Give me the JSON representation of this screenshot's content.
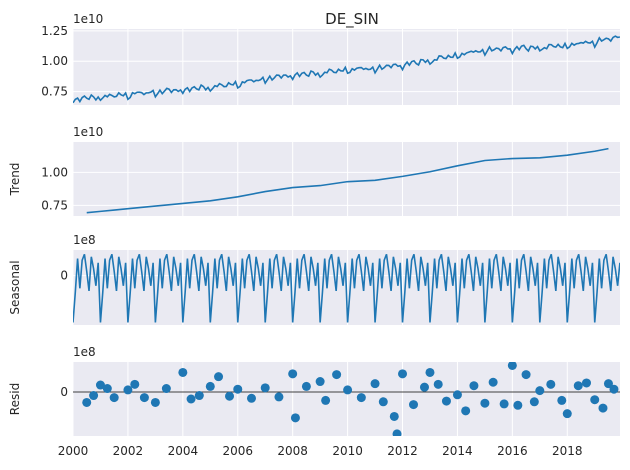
{
  "figure": {
    "title": "DE_SIN"
  },
  "colors": {
    "line": "#1f77b4",
    "panel_bg": "#eaeaf2",
    "grid": "#ffffff",
    "text": "#262626",
    "zero_line": "#000000"
  },
  "chart_data": [
    {
      "type": "line",
      "panel": "observed",
      "title": "DE_SIN",
      "ylabel": "",
      "offset_text": "1e10",
      "x_range": [
        2000.0,
        2019.92
      ],
      "ylim": [
        6.4,
        12.65
      ],
      "ytick_values": [
        7.5,
        10.0,
        12.5
      ],
      "ytick_labels": [
        "0.75",
        "1.00",
        "1.25"
      ],
      "grid": true,
      "series": [
        {
          "values": []
        }
      ]
    },
    {
      "type": "line",
      "panel": "trend",
      "title": "",
      "ylabel": "Trend",
      "offset_text": "1e10",
      "x_range": [
        2000.0,
        2019.92
      ],
      "ylim": [
        6.7,
        12.3
      ],
      "ytick_values": [
        7.5,
        10.0
      ],
      "ytick_labels": [
        "0.75",
        "1.00"
      ],
      "grid": true,
      "points": [
        [
          2000.5,
          6.95
        ],
        [
          2001,
          7.05
        ],
        [
          2001.5,
          7.15
        ],
        [
          2002,
          7.25
        ],
        [
          2003,
          7.45
        ],
        [
          2004,
          7.65
        ],
        [
          2005,
          7.85
        ],
        [
          2006,
          8.15
        ],
        [
          2007,
          8.55
        ],
        [
          2008,
          8.85
        ],
        [
          2009,
          9.0
        ],
        [
          2010,
          9.3
        ],
        [
          2011,
          9.4
        ],
        [
          2012,
          9.7
        ],
        [
          2013,
          10.05
        ],
        [
          2014,
          10.5
        ],
        [
          2015,
          10.9
        ],
        [
          2016,
          11.05
        ],
        [
          2017,
          11.1
        ],
        [
          2018,
          11.3
        ],
        [
          2019,
          11.6
        ],
        [
          2019.5,
          11.8
        ]
      ]
    },
    {
      "type": "line",
      "panel": "seasonal",
      "title": "",
      "ylabel": "Seasonal",
      "offset_text": "1e8",
      "x_range": [
        2000.0,
        2019.92
      ],
      "ylim": [
        -5.8,
        3.0
      ],
      "ytick_values": [
        0
      ],
      "ytick_labels": [
        "0"
      ],
      "grid": true,
      "monthly_pattern": [
        -5.5,
        -2.0,
        2.0,
        -1.5,
        1.8,
        2.5,
        0.5,
        -1.8,
        2.2,
        0.8,
        -1.2,
        1.5
      ]
    },
    {
      "type": "scatter",
      "panel": "resid",
      "title": "",
      "ylabel": "Resid",
      "offset_text": "1e8",
      "x_range": [
        2000.0,
        2019.92
      ],
      "ylim": [
        -6.3,
        4.3
      ],
      "ytick_values": [
        0
      ],
      "ytick_labels": [
        "0"
      ],
      "grid": true,
      "zero_line": true,
      "points": [
        [
          2000.5,
          -1.5
        ],
        [
          2000.75,
          -0.5
        ],
        [
          2001,
          1.0
        ],
        [
          2001.25,
          0.5
        ],
        [
          2001.5,
          -0.8
        ],
        [
          2002,
          0.3
        ],
        [
          2002.25,
          1.1
        ],
        [
          2002.6,
          -0.8
        ],
        [
          2003,
          -1.5
        ],
        [
          2003.4,
          0.5
        ],
        [
          2004,
          2.8
        ],
        [
          2004.3,
          -1.0
        ],
        [
          2004.6,
          -0.5
        ],
        [
          2005,
          0.8
        ],
        [
          2005.3,
          2.2
        ],
        [
          2005.7,
          -0.6
        ],
        [
          2006,
          0.4
        ],
        [
          2006.5,
          -0.9
        ],
        [
          2007,
          0.6
        ],
        [
          2007.5,
          -0.7
        ],
        [
          2008,
          2.6
        ],
        [
          2008.1,
          -3.7
        ],
        [
          2008.5,
          0.8
        ],
        [
          2009,
          1.5
        ],
        [
          2009.2,
          -1.2
        ],
        [
          2009.6,
          2.5
        ],
        [
          2010,
          0.3
        ],
        [
          2010.5,
          -0.8
        ],
        [
          2011,
          1.2
        ],
        [
          2011.3,
          -1.4
        ],
        [
          2011.7,
          -3.5
        ],
        [
          2011.8,
          -6.0
        ],
        [
          2012,
          2.6
        ],
        [
          2012.4,
          -1.8
        ],
        [
          2012.8,
          0.7
        ],
        [
          2013,
          2.8
        ],
        [
          2013.3,
          1.1
        ],
        [
          2013.6,
          -1.3
        ],
        [
          2014,
          -0.4
        ],
        [
          2014.3,
          -2.7
        ],
        [
          2014.6,
          0.9
        ],
        [
          2015,
          -1.6
        ],
        [
          2015.3,
          1.4
        ],
        [
          2015.7,
          -1.7
        ],
        [
          2016,
          3.8
        ],
        [
          2016.2,
          -1.9
        ],
        [
          2016.5,
          2.5
        ],
        [
          2016.8,
          -1.4
        ],
        [
          2017,
          0.2
        ],
        [
          2017.4,
          1.1
        ],
        [
          2017.8,
          -1.2
        ],
        [
          2018,
          -3.1
        ],
        [
          2018.4,
          0.9
        ],
        [
          2018.7,
          1.3
        ],
        [
          2019,
          -1.1
        ],
        [
          2019.3,
          -2.3
        ],
        [
          2019.5,
          1.2
        ],
        [
          2019.7,
          0.4
        ]
      ]
    }
  ],
  "xaxis": {
    "ticks": [
      2000,
      2002,
      2004,
      2006,
      2008,
      2010,
      2012,
      2014,
      2016,
      2018
    ],
    "labels": [
      "2000",
      "2002",
      "2004",
      "2006",
      "2008",
      "2010",
      "2012",
      "2014",
      "2016",
      "2018"
    ]
  }
}
